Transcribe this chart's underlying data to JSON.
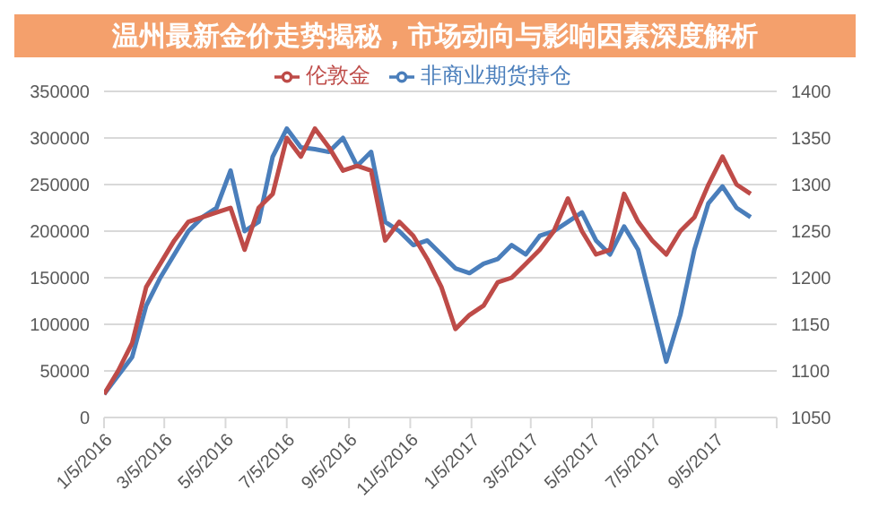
{
  "chart_data": {
    "type": "line",
    "title": "温州最新金价走势揭秘，市场动向与影响因素深度解析",
    "x": [
      "2016-01-05",
      "2016-01-19",
      "2016-02-02",
      "2016-02-16",
      "2016-03-01",
      "2016-03-15",
      "2016-03-29",
      "2016-04-12",
      "2016-04-26",
      "2016-05-10",
      "2016-05-24",
      "2016-06-07",
      "2016-06-21",
      "2016-07-05",
      "2016-07-19",
      "2016-08-02",
      "2016-08-16",
      "2016-08-30",
      "2016-09-13",
      "2016-09-27",
      "2016-10-11",
      "2016-10-25",
      "2016-11-08",
      "2016-11-22",
      "2016-12-06",
      "2016-12-20",
      "2017-01-03",
      "2017-01-17",
      "2017-01-31",
      "2017-02-14",
      "2017-02-28",
      "2017-03-14",
      "2017-03-28",
      "2017-04-11",
      "2017-04-25",
      "2017-05-09",
      "2017-05-23",
      "2017-06-06",
      "2017-06-20",
      "2017-07-04",
      "2017-07-18",
      "2017-08-01",
      "2017-08-15",
      "2017-08-29",
      "2017-09-12",
      "2017-09-26",
      "2017-10-10"
    ],
    "series": [
      {
        "name": "非商业期货持仓",
        "color": "#4a7ebb",
        "values": [
          25000,
          45000,
          65000,
          120000,
          150000,
          175000,
          200000,
          215000,
          225000,
          265000,
          200000,
          210000,
          280000,
          310000,
          290000,
          288000,
          285000,
          300000,
          270000,
          285000,
          210000,
          200000,
          185000,
          190000,
          175000,
          160000,
          155000,
          165000,
          170000,
          185000,
          175000,
          195000,
          200000,
          210000,
          220000,
          190000,
          175000,
          205000,
          180000,
          120000,
          60000,
          110000,
          180000,
          230000,
          248000,
          225000,
          215000
        ]
      },
      {
        "name": "伦敦金",
        "color": "#be4b48",
        "axis": "y2",
        "values": [
          1075,
          1100,
          1130,
          1190,
          1215,
          1240,
          1260,
          1265,
          1270,
          1275,
          1230,
          1275,
          1290,
          1350,
          1330,
          1360,
          1340,
          1315,
          1320,
          1315,
          1240,
          1260,
          1245,
          1220,
          1190,
          1145,
          1160,
          1170,
          1195,
          1200,
          1215,
          1230,
          1250,
          1285,
          1250,
          1225,
          1230,
          1290,
          1260,
          1240,
          1225,
          1250,
          1265,
          1300,
          1330,
          1300,
          1290
        ]
      }
    ],
    "xlim": [
      "2016-01-05",
      "2017-11-05"
    ],
    "xticks": [
      {
        "value": "2016-01-05",
        "label": "1/5/2016"
      },
      {
        "value": "2016-03-05",
        "label": "3/5/2016"
      },
      {
        "value": "2016-05-05",
        "label": "5/5/2016"
      },
      {
        "value": "2016-07-05",
        "label": "7/5/2016"
      },
      {
        "value": "2016-09-05",
        "label": "9/5/2016"
      },
      {
        "value": "2016-11-05",
        "label": "11/5/2016"
      },
      {
        "value": "2017-01-05",
        "label": "1/5/2017"
      },
      {
        "value": "2017-03-05",
        "label": "3/5/2017"
      },
      {
        "value": "2017-05-05",
        "label": "5/5/2017"
      },
      {
        "value": "2017-07-05",
        "label": "7/5/2017"
      },
      {
        "value": "2017-09-05",
        "label": "9/5/2017"
      },
      {
        "value": "2017-11-05",
        "label": null
      }
    ],
    "ylim": [
      0,
      350000
    ],
    "yticks": [
      0,
      50000,
      100000,
      150000,
      200000,
      250000,
      300000,
      350000
    ],
    "y2lim": [
      1050,
      1400
    ],
    "y2ticks": [
      1050,
      1100,
      1150,
      1200,
      1250,
      1300,
      1350,
      1400
    ],
    "grid": "y",
    "legend": "top",
    "marker": "none",
    "line_style": "solid"
  }
}
